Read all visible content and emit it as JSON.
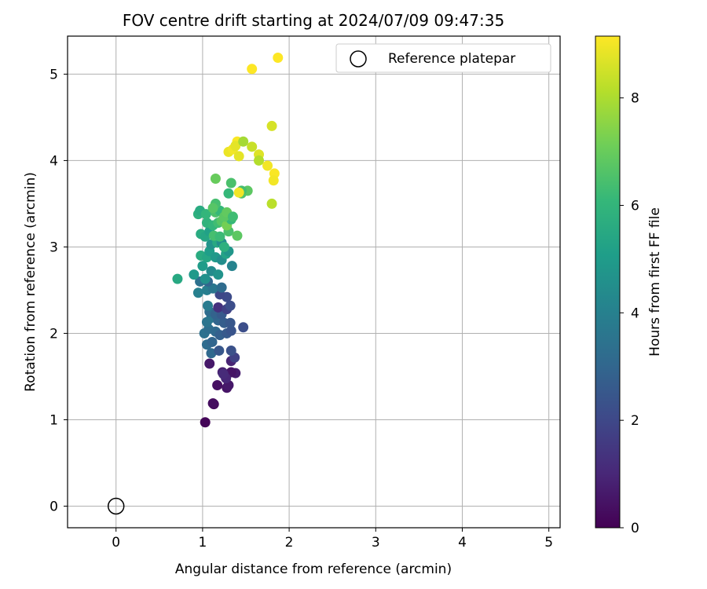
{
  "chart_data": {
    "type": "scatter",
    "title": "FOV centre drift starting at 2024/07/09 09:47:35",
    "xlabel": "Angular distance from reference (arcmin)",
    "ylabel": "Rotation from reference (arcmin)",
    "xlim": [
      -0.56,
      5.13
    ],
    "ylim": [
      -0.25,
      5.44
    ],
    "xticks": [
      0,
      1,
      2,
      3,
      4,
      5
    ],
    "yticks": [
      0,
      1,
      2,
      3,
      4,
      5
    ],
    "grid": true,
    "legend": {
      "placement": "top-right",
      "entries": [
        "Reference platepar"
      ]
    },
    "reference_point": {
      "name": "Reference platepar",
      "x": 0,
      "y": 0
    },
    "colorbar": {
      "label": "Hours from first FF file",
      "min": 0,
      "max": 9.15,
      "ticks": [
        0,
        2,
        4,
        6,
        8
      ],
      "colormap": "viridis"
    },
    "points": [
      {
        "x": 1.03,
        "y": 0.97,
        "c": 0.1
      },
      {
        "x": 1.13,
        "y": 1.18,
        "c": 0.2
      },
      {
        "x": 1.12,
        "y": 1.19,
        "c": 0.3
      },
      {
        "x": 1.17,
        "y": 1.4,
        "c": 0.4
      },
      {
        "x": 1.28,
        "y": 1.37,
        "c": 0.5
      },
      {
        "x": 1.3,
        "y": 1.4,
        "c": 0.6
      },
      {
        "x": 1.38,
        "y": 1.54,
        "c": 0.7
      },
      {
        "x": 1.23,
        "y": 1.55,
        "c": 0.8
      },
      {
        "x": 1.33,
        "y": 1.55,
        "c": 0.5
      },
      {
        "x": 1.08,
        "y": 1.65,
        "c": 0.6
      },
      {
        "x": 1.33,
        "y": 1.68,
        "c": 0.9
      },
      {
        "x": 1.37,
        "y": 1.72,
        "c": 1.8
      },
      {
        "x": 1.27,
        "y": 1.48,
        "c": 1.0
      },
      {
        "x": 1.24,
        "y": 1.53,
        "c": 1.1
      },
      {
        "x": 1.1,
        "y": 1.77,
        "c": 3.1
      },
      {
        "x": 1.19,
        "y": 1.8,
        "c": 2.5
      },
      {
        "x": 1.33,
        "y": 1.8,
        "c": 2.3
      },
      {
        "x": 1.05,
        "y": 1.87,
        "c": 3.2
      },
      {
        "x": 1.11,
        "y": 1.9,
        "c": 3.0
      },
      {
        "x": 1.02,
        "y": 2.0,
        "c": 3.4
      },
      {
        "x": 1.07,
        "y": 2.05,
        "c": 3.3
      },
      {
        "x": 1.15,
        "y": 2.02,
        "c": 3.1
      },
      {
        "x": 1.2,
        "y": 1.98,
        "c": 2.8
      },
      {
        "x": 1.28,
        "y": 2.0,
        "c": 2.6
      },
      {
        "x": 1.33,
        "y": 2.03,
        "c": 2.4
      },
      {
        "x": 1.47,
        "y": 2.07,
        "c": 2.2
      },
      {
        "x": 1.05,
        "y": 2.13,
        "c": 3.5
      },
      {
        "x": 1.1,
        "y": 2.18,
        "c": 3.6
      },
      {
        "x": 1.18,
        "y": 2.15,
        "c": 3.0
      },
      {
        "x": 1.25,
        "y": 2.12,
        "c": 2.7
      },
      {
        "x": 1.32,
        "y": 2.12,
        "c": 2.5
      },
      {
        "x": 1.08,
        "y": 2.25,
        "c": 3.2
      },
      {
        "x": 1.15,
        "y": 2.22,
        "c": 2.9
      },
      {
        "x": 1.22,
        "y": 2.22,
        "c": 2.6
      },
      {
        "x": 1.18,
        "y": 2.3,
        "c": 1.3
      },
      {
        "x": 1.28,
        "y": 2.28,
        "c": 1.8
      },
      {
        "x": 1.32,
        "y": 2.32,
        "c": 2.2
      },
      {
        "x": 1.06,
        "y": 2.32,
        "c": 3.8
      },
      {
        "x": 1.28,
        "y": 2.42,
        "c": 2.1
      },
      {
        "x": 1.2,
        "y": 2.45,
        "c": 2.0
      },
      {
        "x": 0.97,
        "y": 2.6,
        "c": 3.4
      },
      {
        "x": 0.95,
        "y": 2.47,
        "c": 4.0
      },
      {
        "x": 1.05,
        "y": 2.5,
        "c": 3.9
      },
      {
        "x": 1.12,
        "y": 2.52,
        "c": 3.6
      },
      {
        "x": 1.22,
        "y": 2.53,
        "c": 3.2
      },
      {
        "x": 1.06,
        "y": 2.6,
        "c": 3.0
      },
      {
        "x": 0.71,
        "y": 2.63,
        "c": 5.5
      },
      {
        "x": 0.9,
        "y": 2.68,
        "c": 4.9
      },
      {
        "x": 1.03,
        "y": 2.63,
        "c": 4.6
      },
      {
        "x": 1.1,
        "y": 2.72,
        "c": 4.4
      },
      {
        "x": 1.18,
        "y": 2.68,
        "c": 4.7
      },
      {
        "x": 1.34,
        "y": 2.78,
        "c": 4.1
      },
      {
        "x": 1.0,
        "y": 2.78,
        "c": 5.0
      },
      {
        "x": 0.98,
        "y": 2.9,
        "c": 5.6
      },
      {
        "x": 1.05,
        "y": 2.88,
        "c": 5.4
      },
      {
        "x": 1.08,
        "y": 2.95,
        "c": 5.1
      },
      {
        "x": 1.15,
        "y": 2.88,
        "c": 4.9
      },
      {
        "x": 1.22,
        "y": 2.85,
        "c": 4.5
      },
      {
        "x": 1.27,
        "y": 2.92,
        "c": 5.3
      },
      {
        "x": 1.3,
        "y": 2.95,
        "c": 4.8
      },
      {
        "x": 1.1,
        "y": 3.03,
        "c": 4.7
      },
      {
        "x": 1.17,
        "y": 3.05,
        "c": 5.5
      },
      {
        "x": 1.22,
        "y": 3.05,
        "c": 4.5
      },
      {
        "x": 1.25,
        "y": 3.0,
        "c": 5.8
      },
      {
        "x": 0.98,
        "y": 3.15,
        "c": 5.6
      },
      {
        "x": 1.03,
        "y": 3.12,
        "c": 5.4
      },
      {
        "x": 1.08,
        "y": 3.18,
        "c": 5.2
      },
      {
        "x": 1.13,
        "y": 3.13,
        "c": 6.4
      },
      {
        "x": 1.2,
        "y": 3.12,
        "c": 6.2
      },
      {
        "x": 1.3,
        "y": 3.18,
        "c": 6.5
      },
      {
        "x": 1.4,
        "y": 3.13,
        "c": 6.8
      },
      {
        "x": 1.05,
        "y": 3.28,
        "c": 5.9
      },
      {
        "x": 1.12,
        "y": 3.25,
        "c": 6.0
      },
      {
        "x": 1.18,
        "y": 3.28,
        "c": 6.3
      },
      {
        "x": 1.22,
        "y": 3.3,
        "c": 6.7
      },
      {
        "x": 1.28,
        "y": 3.25,
        "c": 7.2
      },
      {
        "x": 1.33,
        "y": 3.32,
        "c": 6.1
      },
      {
        "x": 0.95,
        "y": 3.38,
        "c": 5.8
      },
      {
        "x": 0.97,
        "y": 3.42,
        "c": 5.6
      },
      {
        "x": 1.04,
        "y": 3.38,
        "c": 6.0
      },
      {
        "x": 1.15,
        "y": 3.4,
        "c": 6.5
      },
      {
        "x": 1.2,
        "y": 3.42,
        "c": 6.1
      },
      {
        "x": 1.25,
        "y": 3.35,
        "c": 6.8
      },
      {
        "x": 1.28,
        "y": 3.4,
        "c": 6.9
      },
      {
        "x": 1.35,
        "y": 3.35,
        "c": 6.3
      },
      {
        "x": 1.15,
        "y": 3.5,
        "c": 6.4
      },
      {
        "x": 1.12,
        "y": 3.45,
        "c": 6.7
      },
      {
        "x": 1.3,
        "y": 3.62,
        "c": 6.1
      },
      {
        "x": 1.45,
        "y": 3.62,
        "c": 6.6
      },
      {
        "x": 1.52,
        "y": 3.65,
        "c": 6.8
      },
      {
        "x": 1.15,
        "y": 3.79,
        "c": 7.0
      },
      {
        "x": 1.33,
        "y": 3.74,
        "c": 6.5
      },
      {
        "x": 1.45,
        "y": 3.65,
        "c": 6.4
      },
      {
        "x": 1.42,
        "y": 3.63,
        "c": 9.0
      },
      {
        "x": 1.3,
        "y": 4.1,
        "c": 8.9
      },
      {
        "x": 1.35,
        "y": 4.13,
        "c": 9.0
      },
      {
        "x": 1.4,
        "y": 4.22,
        "c": 9.1
      },
      {
        "x": 1.38,
        "y": 4.17,
        "c": 8.8
      },
      {
        "x": 1.42,
        "y": 4.05,
        "c": 8.8
      },
      {
        "x": 1.47,
        "y": 4.22,
        "c": 7.9
      },
      {
        "x": 1.57,
        "y": 4.16,
        "c": 8.4
      },
      {
        "x": 1.65,
        "y": 4.07,
        "c": 8.7
      },
      {
        "x": 1.65,
        "y": 4.0,
        "c": 8.1
      },
      {
        "x": 1.75,
        "y": 3.94,
        "c": 9.0
      },
      {
        "x": 1.83,
        "y": 3.85,
        "c": 9.1
      },
      {
        "x": 1.82,
        "y": 3.77,
        "c": 9.0
      },
      {
        "x": 1.8,
        "y": 3.5,
        "c": 8.2
      },
      {
        "x": 1.8,
        "y": 4.4,
        "c": 8.6
      },
      {
        "x": 1.57,
        "y": 5.06,
        "c": 9.15
      },
      {
        "x": 1.87,
        "y": 5.19,
        "c": 9.15
      }
    ]
  }
}
